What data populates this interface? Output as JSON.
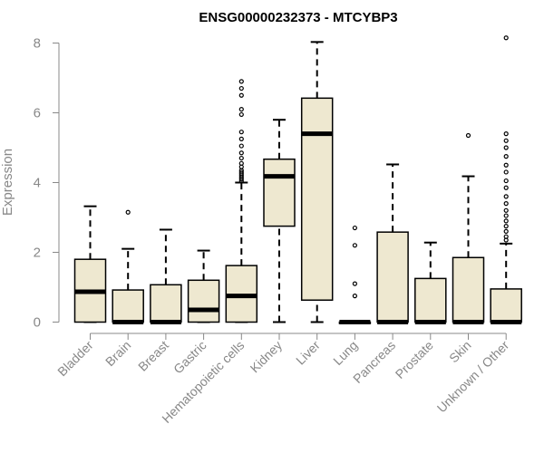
{
  "chart_data": {
    "type": "boxplot",
    "title": "ENSG00000232373 - MTCYBP3",
    "xlabel": "",
    "ylabel": "Expression",
    "ylim": [
      0,
      8
    ],
    "yticks": [
      0,
      2,
      4,
      6,
      8
    ],
    "box_fill": "#EEE8D0",
    "stroke_color": "#000000",
    "axis_color": "#888888",
    "categories": [
      "Bladder",
      "Brain",
      "Breast",
      "Gastric",
      "Hematopoietic cells",
      "Kidney",
      "Liver",
      "Lung",
      "Pancreas",
      "Prostate",
      "Skin",
      "Unknown / Other"
    ],
    "boxes": [
      {
        "min": 0,
        "q1": 0,
        "median": 0.87,
        "q3": 1.8,
        "max": 3.32,
        "outliers": []
      },
      {
        "min": 0,
        "q1": 0,
        "median": 0,
        "q3": 0.92,
        "max": 2.1,
        "outliers": [
          3.15
        ]
      },
      {
        "min": 0,
        "q1": 0,
        "median": 0,
        "q3": 1.07,
        "max": 2.65,
        "outliers": []
      },
      {
        "min": 0,
        "q1": 0,
        "median": 0.35,
        "q3": 1.2,
        "max": 2.05,
        "outliers": []
      },
      {
        "min": 0,
        "q1": 0,
        "median": 0.75,
        "q3": 1.62,
        "max": 4.0,
        "outliers": [
          4.05,
          4.1,
          4.15,
          4.2,
          4.25,
          4.3,
          4.35,
          4.45,
          4.55,
          4.7,
          4.85,
          5.05,
          5.25,
          5.45,
          5.95,
          6.1,
          6.5,
          6.7,
          6.9
        ]
      },
      {
        "min": 0,
        "q1": 2.75,
        "median": 4.18,
        "q3": 4.67,
        "max": 5.8,
        "outliers": []
      },
      {
        "min": 0,
        "q1": 0.63,
        "median": 5.4,
        "q3": 6.42,
        "max": 8.03,
        "outliers": []
      },
      {
        "min": 0,
        "q1": 0,
        "median": 0,
        "q3": 0,
        "max": 0,
        "outliers": [
          0.75,
          1.1,
          2.2,
          2.7
        ]
      },
      {
        "min": 0,
        "q1": 0,
        "median": 0,
        "q3": 2.58,
        "max": 4.52,
        "outliers": []
      },
      {
        "min": 0,
        "q1": 0,
        "median": 0,
        "q3": 1.25,
        "max": 2.28,
        "outliers": []
      },
      {
        "min": 0,
        "q1": 0,
        "median": 0,
        "q3": 1.85,
        "max": 4.18,
        "outliers": [
          5.35
        ]
      },
      {
        "min": 0,
        "q1": 0,
        "median": 0,
        "q3": 0.95,
        "max": 2.25,
        "outliers": [
          2.35,
          2.45,
          2.6,
          2.75,
          2.9,
          3.05,
          3.2,
          3.4,
          3.6,
          3.85,
          4.05,
          4.3,
          4.5,
          4.75,
          5.0,
          5.2,
          5.4,
          8.15
        ]
      }
    ]
  }
}
